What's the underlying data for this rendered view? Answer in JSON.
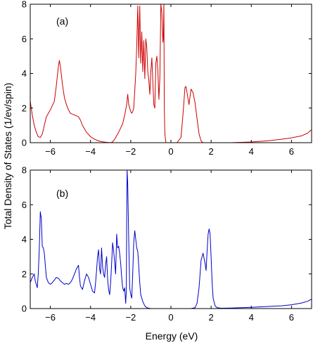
{
  "chart_data": [
    {
      "type": "line",
      "panel_label": "(a)",
      "xlim": [
        -7,
        7
      ],
      "ylim": [
        0,
        8
      ],
      "xticks": [
        -6,
        -4,
        -2,
        0,
        2,
        4,
        6
      ],
      "yticks": [
        0,
        2,
        4,
        6,
        8
      ],
      "grid": false,
      "color": "#cc0000",
      "series": [
        {
          "x": [
            -7.0,
            -6.9,
            -6.8,
            -6.7,
            -6.6,
            -6.5,
            -6.4,
            -6.3,
            -6.2,
            -6.0,
            -5.8,
            -5.7,
            -5.6,
            -5.55,
            -5.5,
            -5.4,
            -5.3,
            -5.2,
            -5.1,
            -5.0,
            -4.9,
            -4.8,
            -4.6,
            -4.5,
            -4.4,
            -4.2,
            -4.0,
            -3.8,
            -3.6,
            -3.4,
            -3.2,
            -3.0,
            -2.9,
            -2.8,
            -2.6,
            -2.4,
            -2.3,
            -2.2,
            -2.15,
            -2.1,
            -2.0,
            -1.95,
            -1.9,
            -1.85,
            -1.8,
            -1.75,
            -1.7,
            -1.65,
            -1.6,
            -1.55,
            -1.5,
            -1.45,
            -1.4,
            -1.35,
            -1.3,
            -1.25,
            -1.2,
            -1.15,
            -1.1,
            -1.05,
            -1.0,
            -0.95,
            -0.9,
            -0.85,
            -0.8,
            -0.75,
            -0.7,
            -0.65,
            -0.6,
            -0.55,
            -0.5,
            -0.45,
            -0.4,
            -0.38,
            -0.35,
            -0.33,
            -0.3,
            -0.25,
            -0.2,
            0.0,
            0.3,
            0.5,
            0.6,
            0.7,
            0.75,
            0.8,
            0.9,
            1.0,
            1.1,
            1.2,
            1.3,
            1.4,
            1.5,
            1.6,
            2.0,
            2.5,
            3.0,
            3.5,
            4.0,
            4.5,
            5.0,
            5.5,
            6.0,
            6.5,
            6.8,
            7.0
          ],
          "y": [
            2.4,
            1.6,
            1.0,
            0.6,
            0.35,
            0.3,
            0.5,
            1.0,
            1.5,
            1.9,
            2.4,
            3.3,
            4.4,
            4.75,
            4.4,
            3.4,
            2.6,
            2.2,
            1.9,
            1.7,
            1.65,
            1.6,
            1.5,
            1.3,
            1.0,
            0.6,
            0.35,
            0.2,
            0.1,
            0.05,
            0.02,
            0.0,
            0.05,
            0.2,
            0.6,
            1.1,
            1.6,
            2.2,
            2.8,
            2.2,
            1.8,
            1.7,
            1.8,
            2.0,
            3.0,
            4.0,
            5.6,
            7.9,
            4.9,
            7.9,
            4.6,
            6.4,
            4.1,
            5.9,
            3.7,
            6.0,
            5.5,
            4.1,
            3.6,
            2.8,
            4.1,
            4.9,
            3.5,
            2.2,
            2.0,
            4.6,
            5.0,
            4.2,
            2.5,
            3.8,
            8.0,
            7.5,
            5.8,
            6.0,
            8.0,
            2.0,
            0.5,
            0.0,
            0.0,
            0.0,
            0.0,
            0.3,
            1.6,
            3.2,
            3.25,
            2.9,
            2.2,
            3.1,
            2.9,
            2.3,
            1.4,
            0.5,
            0.1,
            0.0,
            0.0,
            0.0,
            0.0,
            0.02,
            0.04,
            0.08,
            0.13,
            0.2,
            0.28,
            0.4,
            0.55,
            0.75
          ]
        }
      ]
    },
    {
      "type": "line",
      "panel_label": "(b)",
      "xlim": [
        -7,
        7
      ],
      "ylim": [
        0,
        8
      ],
      "xticks": [
        -6,
        -4,
        -2,
        0,
        2,
        4,
        6
      ],
      "yticks": [
        0,
        2,
        4,
        6,
        8
      ],
      "grid": false,
      "color": "#0000cc",
      "series": [
        {
          "x": [
            -7.0,
            -6.9,
            -6.8,
            -6.75,
            -6.7,
            -6.65,
            -6.6,
            -6.55,
            -6.5,
            -6.45,
            -6.4,
            -6.35,
            -6.3,
            -6.2,
            -6.1,
            -6.0,
            -5.9,
            -5.8,
            -5.7,
            -5.6,
            -5.5,
            -5.4,
            -5.3,
            -5.2,
            -5.1,
            -5.0,
            -4.9,
            -4.8,
            -4.7,
            -4.6,
            -4.55,
            -4.5,
            -4.45,
            -4.4,
            -4.3,
            -4.2,
            -4.1,
            -4.0,
            -3.9,
            -3.8,
            -3.75,
            -3.7,
            -3.65,
            -3.6,
            -3.55,
            -3.5,
            -3.45,
            -3.4,
            -3.35,
            -3.3,
            -3.25,
            -3.2,
            -3.15,
            -3.1,
            -3.05,
            -3.0,
            -2.95,
            -2.9,
            -2.85,
            -2.8,
            -2.75,
            -2.7,
            -2.65,
            -2.6,
            -2.55,
            -2.5,
            -2.45,
            -2.4,
            -2.35,
            -2.3,
            -2.28,
            -2.25,
            -2.22,
            -2.2,
            -2.18,
            -2.15,
            -2.1,
            -2.05,
            -2.0,
            -1.95,
            -1.9,
            -1.85,
            -1.8,
            -1.75,
            -1.7,
            -1.65,
            -1.6,
            -1.55,
            -1.5,
            -1.4,
            -1.3,
            -1.2,
            -1.1,
            -1.0,
            -0.8,
            -0.5,
            0.0,
            0.5,
            1.0,
            1.2,
            1.3,
            1.4,
            1.5,
            1.6,
            1.7,
            1.75,
            1.8,
            1.85,
            1.9,
            1.95,
            2.0,
            2.05,
            2.1,
            2.2,
            2.3,
            2.5,
            3.0,
            3.5,
            4.0,
            4.5,
            5.0,
            5.5,
            6.0,
            6.5,
            6.8,
            7.0
          ],
          "y": [
            1.5,
            1.8,
            2.0,
            1.6,
            1.4,
            1.2,
            2.0,
            3.5,
            5.6,
            5.2,
            3.6,
            3.5,
            3.2,
            1.8,
            1.5,
            1.4,
            1.5,
            1.65,
            1.8,
            1.75,
            1.6,
            1.5,
            1.4,
            1.45,
            1.4,
            1.5,
            1.7,
            2.0,
            2.3,
            2.5,
            1.8,
            1.3,
            1.2,
            1.1,
            1.6,
            2.0,
            1.8,
            1.4,
            1.0,
            0.9,
            1.5,
            2.2,
            3.0,
            3.4,
            2.3,
            2.0,
            3.5,
            2.4,
            2.0,
            1.8,
            2.5,
            3.0,
            1.7,
            1.1,
            0.8,
            1.5,
            2.6,
            3.8,
            3.3,
            2.7,
            2.0,
            4.3,
            3.5,
            3.6,
            3.2,
            2.6,
            1.8,
            1.2,
            1.0,
            1.2,
            0.8,
            0.3,
            1.0,
            5.0,
            8.0,
            7.2,
            4.0,
            1.2,
            0.8,
            0.6,
            2.0,
            3.8,
            4.5,
            4.0,
            3.5,
            3.3,
            2.4,
            1.5,
            0.8,
            0.4,
            0.15,
            0.05,
            0.02,
            0.0,
            0.0,
            0.0,
            0.0,
            0.0,
            0.0,
            0.05,
            0.3,
            1.2,
            2.8,
            3.2,
            2.6,
            2.2,
            3.3,
            4.3,
            4.6,
            4.3,
            3.0,
            1.5,
            0.6,
            0.15,
            0.05,
            0.02,
            0.03,
            0.05,
            0.07,
            0.1,
            0.13,
            0.16,
            0.22,
            0.32,
            0.42,
            0.55
          ]
        }
      ]
    }
  ],
  "xlabel": "Energy (eV)",
  "ylabel": "Total Density of States (1/ev/spin)"
}
